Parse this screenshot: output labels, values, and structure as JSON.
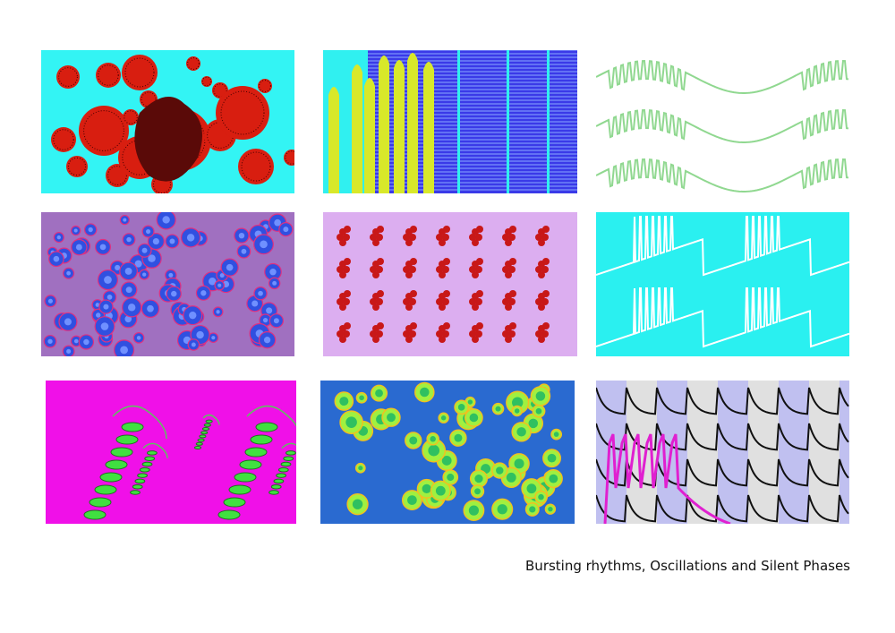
{
  "caption": "Bursting rhythms, Oscillations and Silent Phases",
  "panels": [
    {
      "name": "red-spheres-on-cyan",
      "bg": "#33f4f4",
      "fg": "#d81e10"
    },
    {
      "name": "yellow-spikes-on-blue-stripes",
      "bg": "#3a3ae8",
      "fg": "#d8e82a"
    },
    {
      "name": "green-bursting-waves",
      "bg": "#ffffff",
      "fg": "#90d890"
    },
    {
      "name": "blue-cells-on-purple",
      "bg": "#a070c0",
      "fg": "#3050e0"
    },
    {
      "name": "red-protein-grid-on-lilac",
      "bg": "#dcaef0",
      "fg": "#c81818"
    },
    {
      "name": "white-bursts-on-cyan",
      "bg": "#2af0f0",
      "fg": "#ffffff"
    },
    {
      "name": "green-helices-on-magenta",
      "bg": "#f010e8",
      "fg": "#40e040"
    },
    {
      "name": "green-cells-on-blue",
      "bg": "#2a6ad0",
      "fg": "#a0f040"
    },
    {
      "name": "black-waves-lavender-stripes",
      "bg": "#e0e0e0",
      "fg": "#111111",
      "accent": "#e020d0"
    }
  ]
}
